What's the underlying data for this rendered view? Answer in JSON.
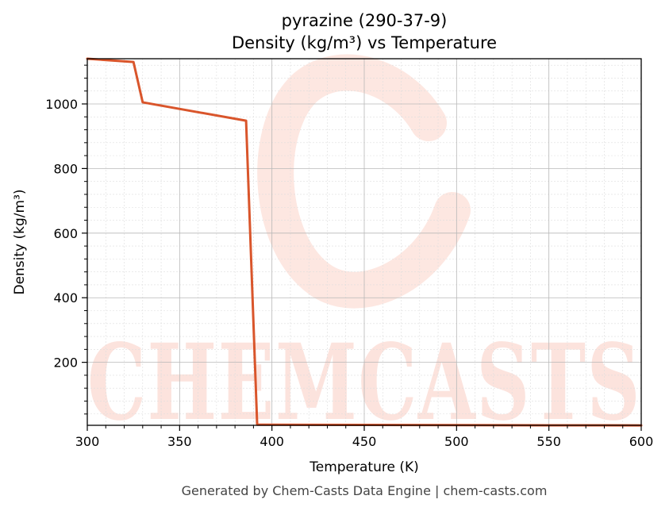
{
  "chart_data": {
    "type": "line",
    "title": "pyrazine (290-37-9)",
    "subtitle": "Density (kg/m³) vs Temperature",
    "xlabel": "Temperature (K)",
    "ylabel": "Density (kg/m³)",
    "xlim": [
      300,
      600
    ],
    "ylim": [
      5,
      1140
    ],
    "xticks": [
      300,
      350,
      400,
      450,
      500,
      550,
      600
    ],
    "yticks": [
      200,
      400,
      600,
      800,
      1000
    ],
    "grid": true,
    "series": [
      {
        "color": "#d9552b",
        "x": [
          300,
          325,
          330,
          386,
          392,
          395,
          450,
          500,
          550,
          600
        ],
        "y": [
          1140,
          1130,
          1005,
          948,
          7,
          6.8,
          6.2,
          5.6,
          5.1,
          4.7
        ]
      }
    ],
    "watermark": "CHEMCASTS",
    "footer": "Generated by Chem-Casts Data Engine | chem-casts.com"
  }
}
